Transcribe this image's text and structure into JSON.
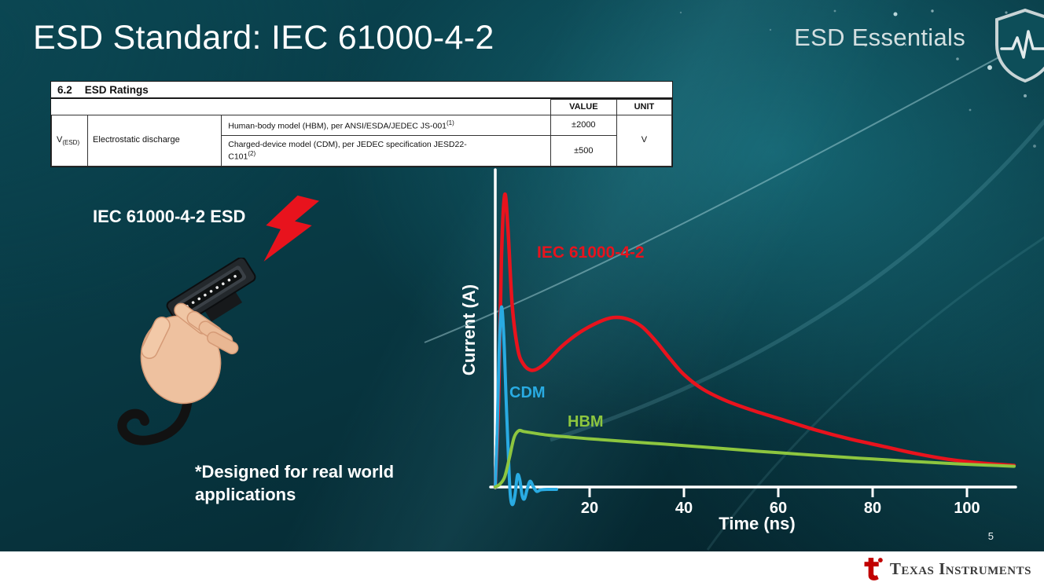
{
  "slide": {
    "title": "ESD Standard: IEC 61000-4-2",
    "brand": "ESD Essentials",
    "page_number": "5"
  },
  "table": {
    "section": "6.2",
    "section_title": "ESD Ratings",
    "col_value": "VALUE",
    "col_unit": "UNIT",
    "param_symbol": "V",
    "param_sub": "(ESD)",
    "param_name": "Electrostatic discharge",
    "rows": [
      {
        "desc": "Human-body model (HBM), per ANSI/ESDA/JEDEC JS-001",
        "footnote": "(1)",
        "value": "±2000"
      },
      {
        "desc_line1": "Charged-device model (CDM), per JEDEC specification JESD22-",
        "desc_line2": "C101",
        "footnote": "(2)",
        "value": "±500"
      }
    ],
    "unit": "V"
  },
  "left": {
    "connector_label": "IEC 61000-4-2 ESD",
    "note": "*Designed for real world applications"
  },
  "chart_data": {
    "type": "line",
    "title": "",
    "xlabel": "Time (ns)",
    "ylabel": "Current (A)",
    "xlim": [
      0,
      112
    ],
    "ylim": [
      -0.09,
      1.08
    ],
    "xticks": [
      20,
      40,
      60,
      80,
      100
    ],
    "yticks": [],
    "grid": false,
    "y_scale_note": "y axis unlabeled; values normalized to IEC 61000-4-2 peak = 1.0",
    "series": [
      {
        "name": "IEC 61000-4-2",
        "color": "#e8131d",
        "points": [
          [
            0,
            0
          ],
          [
            0.7,
            0.3
          ],
          [
            1.3,
            0.78
          ],
          [
            2,
            1.0
          ],
          [
            2.7,
            0.88
          ],
          [
            3.6,
            0.62
          ],
          [
            4.8,
            0.47
          ],
          [
            6,
            0.42
          ],
          [
            7.5,
            0.4
          ],
          [
            9,
            0.405
          ],
          [
            11,
            0.43
          ],
          [
            14,
            0.48
          ],
          [
            18,
            0.53
          ],
          [
            22,
            0.565
          ],
          [
            25,
            0.58
          ],
          [
            28,
            0.575
          ],
          [
            31,
            0.55
          ],
          [
            34,
            0.5
          ],
          [
            37,
            0.44
          ],
          [
            40,
            0.385
          ],
          [
            44,
            0.335
          ],
          [
            49,
            0.295
          ],
          [
            55,
            0.26
          ],
          [
            61,
            0.23
          ],
          [
            68,
            0.195
          ],
          [
            75,
            0.165
          ],
          [
            82,
            0.14
          ],
          [
            89,
            0.115
          ],
          [
            96,
            0.095
          ],
          [
            103,
            0.082
          ],
          [
            110,
            0.074
          ]
        ]
      },
      {
        "name": "CDM",
        "color": "#29abe2",
        "points": [
          [
            0,
            0
          ],
          [
            0.4,
            0.18
          ],
          [
            0.8,
            0.45
          ],
          [
            1.3,
            0.615
          ],
          [
            1.8,
            0.52
          ],
          [
            2.3,
            0.3
          ],
          [
            2.8,
            0.1
          ],
          [
            3.2,
            -0.03
          ],
          [
            3.7,
            -0.06
          ],
          [
            4.2,
            -0.025
          ],
          [
            4.7,
            0.04
          ],
          [
            5.2,
            0.025
          ],
          [
            5.7,
            -0.03
          ],
          [
            6.2,
            -0.04
          ],
          [
            6.8,
            -0.005
          ],
          [
            7.4,
            0.02
          ],
          [
            8.1,
            0
          ],
          [
            8.8,
            -0.015
          ],
          [
            9.6,
            -0.01
          ],
          [
            11,
            -0.008
          ],
          [
            13,
            -0.008
          ]
        ]
      },
      {
        "name": "HBM",
        "color": "#8dc63f",
        "points": [
          [
            0,
            0
          ],
          [
            1,
            0.01
          ],
          [
            2,
            0.035
          ],
          [
            3,
            0.1
          ],
          [
            4,
            0.17
          ],
          [
            5,
            0.193
          ],
          [
            6,
            0.19
          ],
          [
            8,
            0.185
          ],
          [
            11,
            0.178
          ],
          [
            15,
            0.172
          ],
          [
            20,
            0.165
          ],
          [
            26,
            0.158
          ],
          [
            33,
            0.15
          ],
          [
            40,
            0.142
          ],
          [
            48,
            0.132
          ],
          [
            56,
            0.122
          ],
          [
            64,
            0.113
          ],
          [
            72,
            0.104
          ],
          [
            80,
            0.096
          ],
          [
            88,
            0.088
          ],
          [
            96,
            0.081
          ],
          [
            104,
            0.075
          ],
          [
            110,
            0.071
          ]
        ]
      }
    ]
  },
  "footer": {
    "logo_text": "Texas Instruments"
  },
  "colors": {
    "background": "#07333d",
    "accent_red": "#e8131d",
    "footer_bg": "#ffffff"
  },
  "icons": {
    "top_right": "shield-pulse-icon",
    "left": "lightning-bolt-icon",
    "footer": "ti-logo-icon"
  }
}
